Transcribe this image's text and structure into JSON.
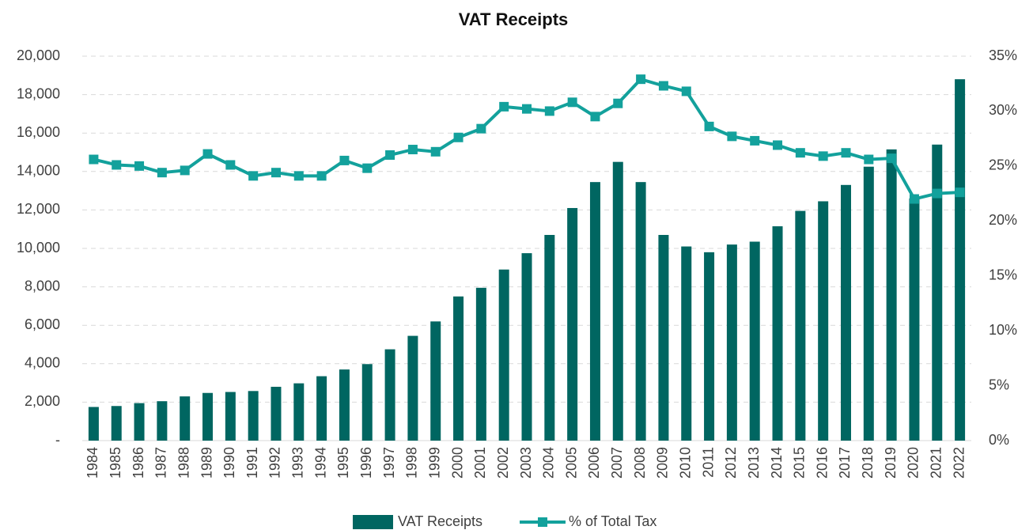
{
  "chart_data": {
    "type": "bar_line",
    "title": "VAT Receipts",
    "categories": [
      "1984",
      "1985",
      "1986",
      "1987",
      "1988",
      "1989",
      "1990",
      "1991",
      "1992",
      "1993",
      "1994",
      "1995",
      "1996",
      "1997",
      "1998",
      "1999",
      "2000",
      "2001",
      "2002",
      "2003",
      "2004",
      "2005",
      "2006",
      "2007",
      "2008",
      "2009",
      "2010",
      "2011",
      "2012",
      "2013",
      "2014",
      "2015",
      "2016",
      "2017",
      "2018",
      "2019",
      "2020",
      "2021",
      "2022"
    ],
    "series": [
      {
        "name": "VAT Receipts",
        "type": "bar",
        "color": "#006661",
        "values": [
          1750,
          1800,
          1950,
          2050,
          2300,
          2480,
          2530,
          2580,
          2800,
          2980,
          3350,
          3700,
          3980,
          4750,
          5450,
          6200,
          7500,
          7950,
          8900,
          9750,
          10700,
          12100,
          13450,
          14500,
          13450,
          10700,
          10100,
          9800,
          10200,
          10350,
          11150,
          11950,
          12450,
          13300,
          14250,
          15150,
          12600,
          15400,
          18800
        ]
      },
      {
        "name": "% of Total Tax",
        "type": "line",
        "axis": "y2",
        "color": "#13a19c",
        "values": [
          25.6,
          25.1,
          25.0,
          24.4,
          24.6,
          26.1,
          25.1,
          24.1,
          24.4,
          24.1,
          24.1,
          25.5,
          24.8,
          26.0,
          26.5,
          26.3,
          27.6,
          28.4,
          30.4,
          30.2,
          30.0,
          30.8,
          29.5,
          30.7,
          32.9,
          32.3,
          31.8,
          28.6,
          27.7,
          27.3,
          26.9,
          26.2,
          25.9,
          26.2,
          25.6,
          25.7,
          22.0,
          22.5,
          22.6
        ]
      }
    ],
    "ylim": [
      0,
      20000
    ],
    "yticks": [
      {
        "value": 0,
        "label": "-"
      },
      {
        "value": 2000,
        "label": "2,000"
      },
      {
        "value": 4000,
        "label": "4,000"
      },
      {
        "value": 6000,
        "label": "6,000"
      },
      {
        "value": 8000,
        "label": "8,000"
      },
      {
        "value": 10000,
        "label": "10,000"
      },
      {
        "value": 12000,
        "label": "12,000"
      },
      {
        "value": 14000,
        "label": "14,000"
      },
      {
        "value": 16000,
        "label": "16,000"
      },
      {
        "value": 18000,
        "label": "18,000"
      },
      {
        "value": 20000,
        "label": "20,000"
      }
    ],
    "y2lim": [
      0,
      35
    ],
    "y2ticks": [
      {
        "value": 0,
        "label": "0%"
      },
      {
        "value": 5,
        "label": "5%"
      },
      {
        "value": 10,
        "label": "10%"
      },
      {
        "value": 15,
        "label": "15%"
      },
      {
        "value": 20,
        "label": "20%"
      },
      {
        "value": 25,
        "label": "25%"
      },
      {
        "value": 30,
        "label": "30%"
      },
      {
        "value": 35,
        "label": "35%"
      }
    ],
    "grid": true,
    "legend": "bottom"
  }
}
